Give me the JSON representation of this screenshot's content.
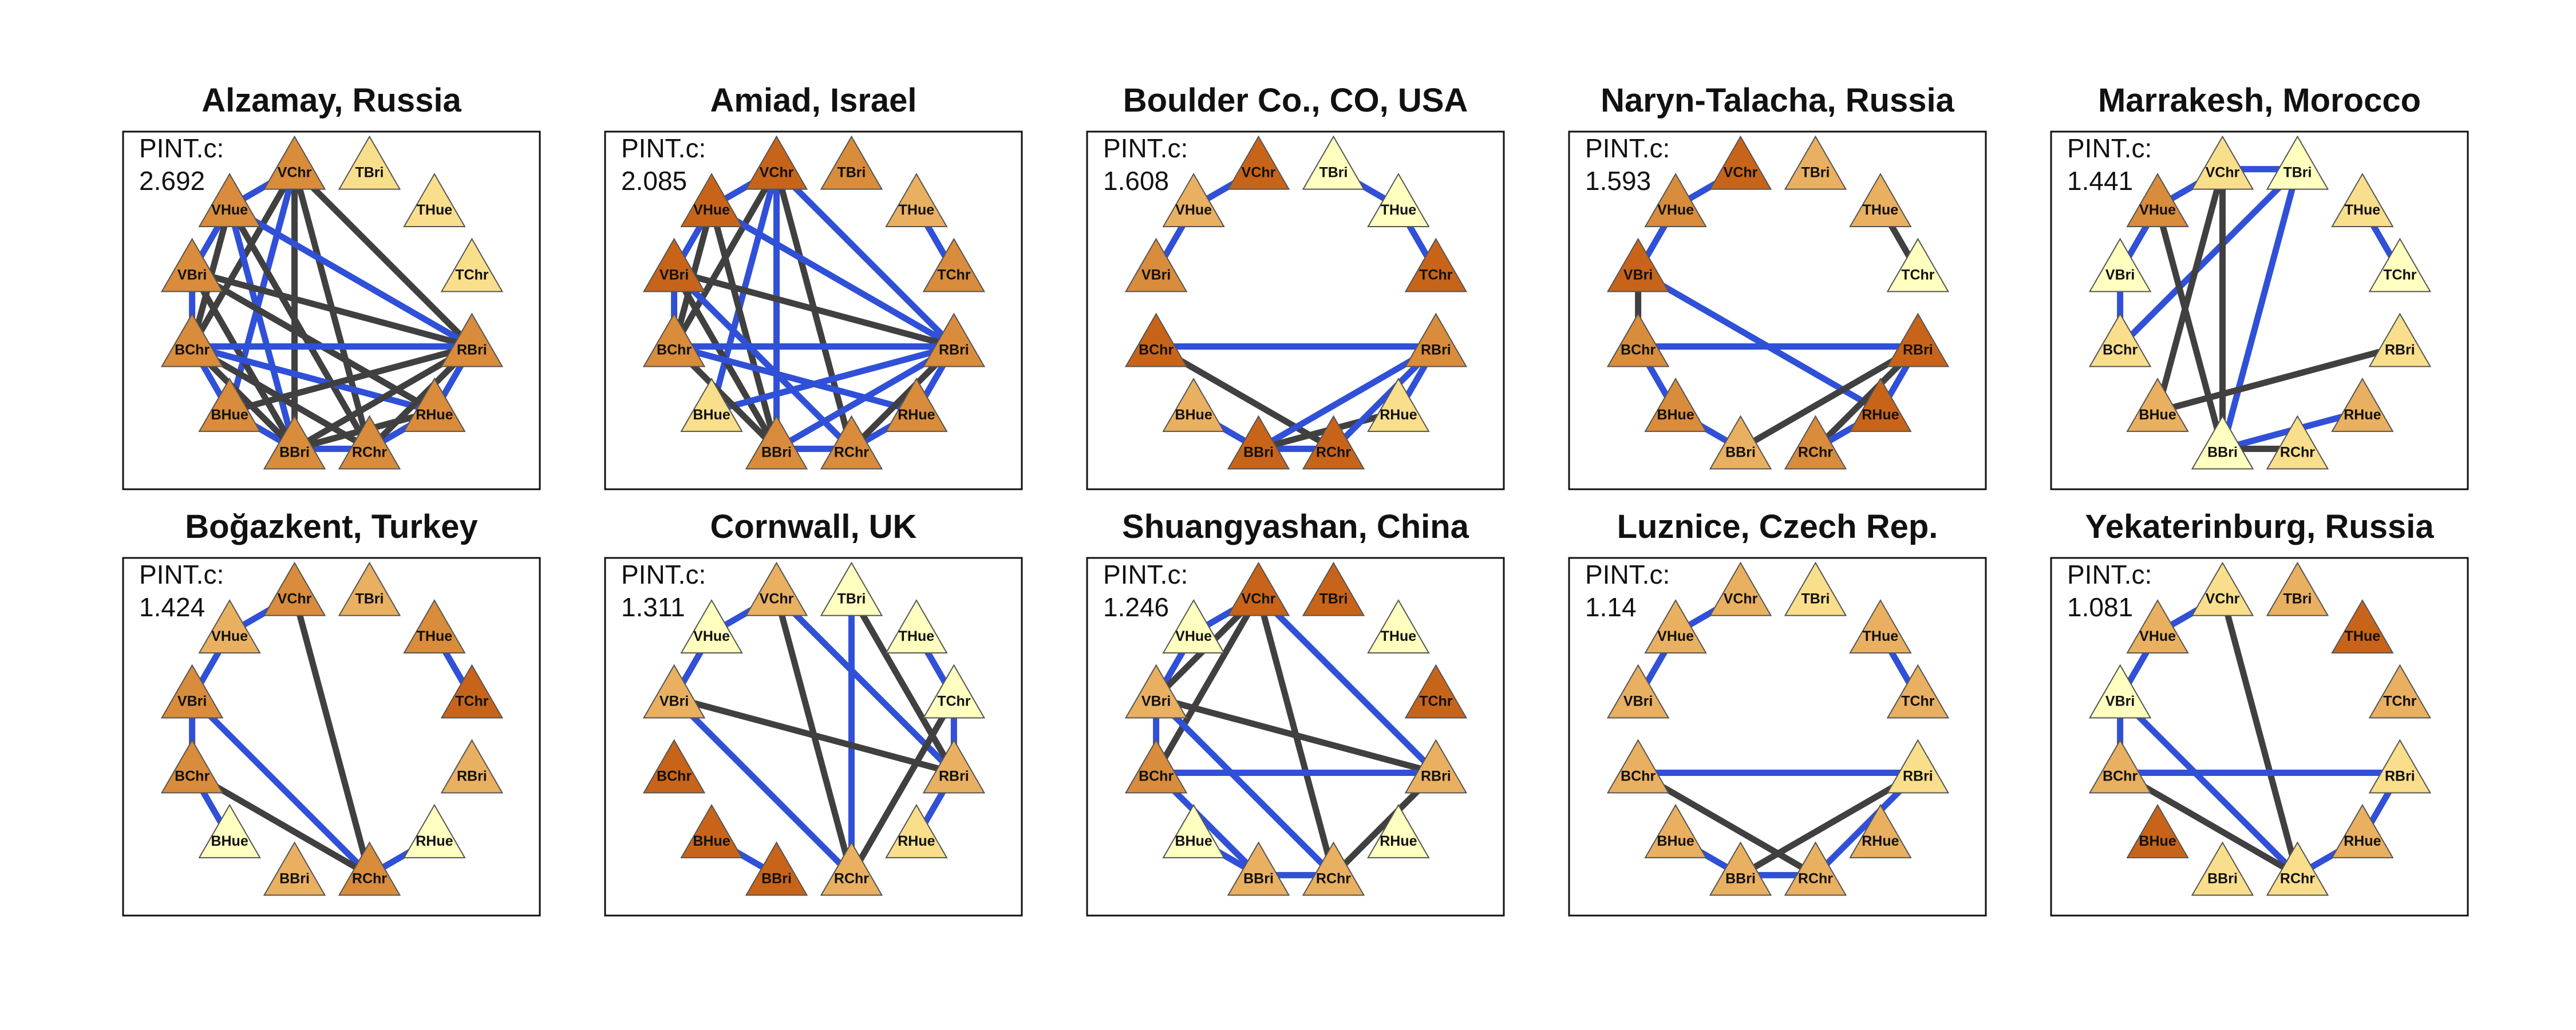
{
  "pint_label": "PINT.c:",
  "node_order": [
    "TBri",
    "THue",
    "TChr",
    "RBri",
    "RHue",
    "RChr",
    "BBri",
    "BHue",
    "BChr",
    "VBri",
    "VHue",
    "VChr"
  ],
  "fill_palette": {
    "1": "#ffffbf",
    "2": "#f9df8c",
    "3": "#e9b061",
    "4": "#d88c3c",
    "5": "#c86419"
  },
  "edge_colors": {
    "positive": "#3050d8",
    "negative": "#404040"
  },
  "panels": [
    {
      "title": "Alzamay, Russia",
      "pint": "2.692",
      "fills": {
        "TBri": 2,
        "THue": 2,
        "TChr": 2,
        "RBri": 4,
        "RHue": 4,
        "RChr": 4,
        "BBri": 4,
        "BHue": 4,
        "BChr": 4,
        "VBri": 4,
        "VHue": 4,
        "VChr": 4
      },
      "edges": [
        [
          "VChr",
          "VHue",
          "b"
        ],
        [
          "VHue",
          "VBri",
          "b"
        ],
        [
          "VBri",
          "BChr",
          "b"
        ],
        [
          "BChr",
          "BHue",
          "b"
        ],
        [
          "BHue",
          "BBri",
          "b"
        ],
        [
          "BBri",
          "RChr",
          "b"
        ],
        [
          "RChr",
          "RHue",
          "b"
        ],
        [
          "RHue",
          "RBri",
          "b"
        ],
        [
          "VChr",
          "RBri",
          "k"
        ],
        [
          "VChr",
          "BBri",
          "k"
        ],
        [
          "VChr",
          "RChr",
          "k"
        ],
        [
          "VChr",
          "BChr",
          "k"
        ],
        [
          "VChr",
          "BHue",
          "b"
        ],
        [
          "VHue",
          "RBri",
          "b"
        ],
        [
          "VHue",
          "RChr",
          "k"
        ],
        [
          "VHue",
          "BBri",
          "b"
        ],
        [
          "VHue",
          "BChr",
          "k"
        ],
        [
          "VBri",
          "RBri",
          "k"
        ],
        [
          "VBri",
          "RHue",
          "k"
        ],
        [
          "VBri",
          "BBri",
          "k"
        ],
        [
          "BChr",
          "RBri",
          "b"
        ],
        [
          "BChr",
          "RHue",
          "b"
        ],
        [
          "BChr",
          "RChr",
          "k"
        ],
        [
          "BChr",
          "BBri",
          "k"
        ],
        [
          "BHue",
          "RBri",
          "k"
        ],
        [
          "BBri",
          "RBri",
          "k"
        ],
        [
          "BBri",
          "RHue",
          "k"
        ],
        [
          "RChr",
          "RBri",
          "k"
        ]
      ]
    },
    {
      "title": "Amiad, Israel",
      "pint": "2.085",
      "fills": {
        "TBri": 4,
        "THue": 3,
        "TChr": 4,
        "RBri": 4,
        "RHue": 4,
        "RChr": 4,
        "BBri": 4,
        "BHue": 2,
        "BChr": 4,
        "VBri": 5,
        "VHue": 5,
        "VChr": 5
      },
      "edges": [
        [
          "VChr",
          "VHue",
          "b"
        ],
        [
          "VHue",
          "VBri",
          "b"
        ],
        [
          "VBri",
          "BChr",
          "b"
        ],
        [
          "THue",
          "TChr",
          "b"
        ],
        [
          "BBri",
          "RChr",
          "b"
        ],
        [
          "RChr",
          "RHue",
          "b"
        ],
        [
          "RHue",
          "RBri",
          "b"
        ],
        [
          "VChr",
          "RBri",
          "b"
        ],
        [
          "VChr",
          "BBri",
          "b"
        ],
        [
          "VChr",
          "RChr",
          "k"
        ],
        [
          "VChr",
          "BChr",
          "k"
        ],
        [
          "VChr",
          "BHue",
          "b"
        ],
        [
          "VHue",
          "RBri",
          "b"
        ],
        [
          "VHue",
          "BBri",
          "k"
        ],
        [
          "VHue",
          "BChr",
          "k"
        ],
        [
          "VBri",
          "RBri",
          "k"
        ],
        [
          "VBri",
          "BBri",
          "k"
        ],
        [
          "VBri",
          "RChr",
          "b"
        ],
        [
          "BChr",
          "RBri",
          "b"
        ],
        [
          "BChr",
          "RHue",
          "b"
        ],
        [
          "BHue",
          "RBri",
          "b"
        ],
        [
          "BBri",
          "RBri",
          "b"
        ],
        [
          "RChr",
          "RBri",
          "k"
        ],
        [
          "BChr",
          "BBri",
          "k"
        ]
      ]
    },
    {
      "title": "Boulder Co., CO, USA",
      "pint": "1.608",
      "fills": {
        "TBri": 1,
        "THue": 1,
        "TChr": 5,
        "RBri": 4,
        "RHue": 2,
        "RChr": 5,
        "BBri": 5,
        "BHue": 3,
        "BChr": 5,
        "VBri": 4,
        "VHue": 3,
        "VChr": 5
      },
      "edges": [
        [
          "VChr",
          "VHue",
          "b"
        ],
        [
          "VHue",
          "VBri",
          "b"
        ],
        [
          "TBri",
          "THue",
          "b"
        ],
        [
          "THue",
          "TChr",
          "b"
        ],
        [
          "BChr",
          "RBri",
          "b"
        ],
        [
          "BChr",
          "RChr",
          "k"
        ],
        [
          "BHue",
          "BBri",
          "b"
        ],
        [
          "BBri",
          "RChr",
          "b"
        ],
        [
          "BBri",
          "RBri",
          "b"
        ],
        [
          "BBri",
          "RHue",
          "k"
        ],
        [
          "RChr",
          "RBri",
          "b"
        ],
        [
          "RHue",
          "RBri",
          "b"
        ]
      ]
    },
    {
      "title": "Naryn-Talacha, Russia",
      "pint": "1.593",
      "fills": {
        "TBri": 3,
        "THue": 3,
        "TChr": 1,
        "RBri": 5,
        "RHue": 5,
        "RChr": 4,
        "BBri": 3,
        "BHue": 4,
        "BChr": 4,
        "VBri": 5,
        "VHue": 4,
        "VChr": 5
      },
      "edges": [
        [
          "VChr",
          "VHue",
          "b"
        ],
        [
          "VHue",
          "VBri",
          "b"
        ],
        [
          "VBri",
          "BChr",
          "k"
        ],
        [
          "THue",
          "TChr",
          "k"
        ],
        [
          "BChr",
          "RBri",
          "b"
        ],
        [
          "VBri",
          "RHue",
          "b"
        ],
        [
          "BChr",
          "BHue",
          "b"
        ],
        [
          "BHue",
          "BBri",
          "b"
        ],
        [
          "RChr",
          "RBri",
          "k"
        ],
        [
          "RChr",
          "RHue",
          "b"
        ],
        [
          "BBri",
          "RBri",
          "k"
        ],
        [
          "RHue",
          "RBri",
          "b"
        ]
      ]
    },
    {
      "title": "Marrakesh, Morocco",
      "pint": "1.441",
      "fills": {
        "TBri": 1,
        "THue": 2,
        "TChr": 1,
        "RBri": 2,
        "RHue": 3,
        "RChr": 2,
        "BBri": 1,
        "BHue": 3,
        "BChr": 2,
        "VBri": 1,
        "VHue": 4,
        "VChr": 2
      },
      "edges": [
        [
          "VChr",
          "TBri",
          "b"
        ],
        [
          "VChr",
          "VHue",
          "b"
        ],
        [
          "VHue",
          "VBri",
          "b"
        ],
        [
          "VBri",
          "BChr",
          "b"
        ],
        [
          "TBri",
          "BBri",
          "b"
        ],
        [
          "TBri",
          "BChr",
          "b"
        ],
        [
          "THue",
          "TChr",
          "b"
        ],
        [
          "VChr",
          "BHue",
          "k"
        ],
        [
          "VHue",
          "BBri",
          "k"
        ],
        [
          "VChr",
          "BBri",
          "k"
        ],
        [
          "BHue",
          "RBri",
          "k"
        ],
        [
          "BBri",
          "RHue",
          "b"
        ],
        [
          "BBri",
          "RChr",
          "k"
        ]
      ]
    },
    {
      "title": "Boğazkent, Turkey",
      "pint": "1.424",
      "fills": {
        "TBri": 3,
        "THue": 4,
        "TChr": 5,
        "RBri": 3,
        "RHue": 1,
        "RChr": 4,
        "BBri": 3,
        "BHue": 1,
        "BChr": 4,
        "VBri": 4,
        "VHue": 3,
        "VChr": 4
      },
      "edges": [
        [
          "VChr",
          "VHue",
          "b"
        ],
        [
          "VHue",
          "VBri",
          "b"
        ],
        [
          "VBri",
          "BChr",
          "b"
        ],
        [
          "BChr",
          "BHue",
          "b"
        ],
        [
          "THue",
          "TChr",
          "b"
        ],
        [
          "VChr",
          "RChr",
          "k"
        ],
        [
          "VBri",
          "RChr",
          "b"
        ],
        [
          "BChr",
          "RChr",
          "k"
        ],
        [
          "RHue",
          "RChr",
          "b"
        ]
      ]
    },
    {
      "title": "Cornwall, UK",
      "pint": "1.311",
      "fills": {
        "TBri": 1,
        "THue": 1,
        "TChr": 1,
        "RBri": 3,
        "RHue": 2,
        "RChr": 3,
        "BBri": 5,
        "BHue": 5,
        "BChr": 5,
        "VBri": 3,
        "VHue": 1,
        "VChr": 3
      },
      "edges": [
        [
          "VChr",
          "VHue",
          "b"
        ],
        [
          "VHue",
          "VBri",
          "b"
        ],
        [
          "THue",
          "TChr",
          "b"
        ],
        [
          "TChr",
          "RBri",
          "b"
        ],
        [
          "RBri",
          "RHue",
          "b"
        ],
        [
          "BHue",
          "BBri",
          "b"
        ],
        [
          "VChr",
          "RBri",
          "b"
        ],
        [
          "VChr",
          "RChr",
          "k"
        ],
        [
          "TBri",
          "RBri",
          "k"
        ],
        [
          "TBri",
          "RChr",
          "b"
        ],
        [
          "TChr",
          "RChr",
          "k"
        ],
        [
          "VBri",
          "RBri",
          "k"
        ],
        [
          "VBri",
          "RChr",
          "b"
        ]
      ]
    },
    {
      "title": "Shuangyashan, China",
      "pint": "1.246",
      "fills": {
        "TBri": 5,
        "THue": 1,
        "TChr": 5,
        "RBri": 3,
        "RHue": 1,
        "RChr": 3,
        "BBri": 3,
        "BHue": 1,
        "BChr": 4,
        "VBri": 3,
        "VHue": 1,
        "VChr": 5
      },
      "edges": [
        [
          "VChr",
          "VHue",
          "b"
        ],
        [
          "VHue",
          "VBri",
          "b"
        ],
        [
          "VBri",
          "BChr",
          "b"
        ],
        [
          "VChr",
          "VBri",
          "k"
        ],
        [
          "VChr",
          "BChr",
          "k"
        ],
        [
          "VChr",
          "RBri",
          "b"
        ],
        [
          "VChr",
          "RChr",
          "k"
        ],
        [
          "VBri",
          "RBri",
          "k"
        ],
        [
          "VBri",
          "RChr",
          "b"
        ],
        [
          "BChr",
          "RBri",
          "b"
        ],
        [
          "BChr",
          "BBri",
          "b"
        ],
        [
          "BHue",
          "BBri",
          "b"
        ],
        [
          "RChr",
          "RBri",
          "k"
        ],
        [
          "BBri",
          "RChr",
          "b"
        ]
      ]
    },
    {
      "title": "Luznice, Czech Rep.",
      "pint": "1.14",
      "fills": {
        "TBri": 2,
        "THue": 3,
        "TChr": 3,
        "RBri": 2,
        "RHue": 3,
        "RChr": 3,
        "BBri": 3,
        "BHue": 3,
        "BChr": 3,
        "VBri": 3,
        "VHue": 3,
        "VChr": 3
      },
      "edges": [
        [
          "VChr",
          "VHue",
          "b"
        ],
        [
          "VHue",
          "VBri",
          "b"
        ],
        [
          "THue",
          "TChr",
          "b"
        ],
        [
          "BChr",
          "RBri",
          "b"
        ],
        [
          "BChr",
          "RChr",
          "k"
        ],
        [
          "BHue",
          "BBri",
          "b"
        ],
        [
          "BBri",
          "RChr",
          "b"
        ],
        [
          "BBri",
          "RBri",
          "k"
        ],
        [
          "RChr",
          "RBri",
          "b"
        ]
      ]
    },
    {
      "title": "Yekaterinburg, Russia",
      "pint": "1.081",
      "fills": {
        "TBri": 3,
        "THue": 5,
        "TChr": 3,
        "RBri": 2,
        "RHue": 3,
        "RChr": 2,
        "BBri": 2,
        "BHue": 5,
        "BChr": 3,
        "VBri": 1,
        "VHue": 3,
        "VChr": 2
      },
      "edges": [
        [
          "VChr",
          "VHue",
          "b"
        ],
        [
          "VHue",
          "VBri",
          "b"
        ],
        [
          "VBri",
          "BChr",
          "b"
        ],
        [
          "VChr",
          "RChr",
          "k"
        ],
        [
          "VBri",
          "RChr",
          "b"
        ],
        [
          "BChr",
          "RBri",
          "b"
        ],
        [
          "BChr",
          "RChr",
          "k"
        ],
        [
          "RHue",
          "RBri",
          "b"
        ],
        [
          "RChr",
          "RHue",
          "b"
        ]
      ]
    }
  ]
}
